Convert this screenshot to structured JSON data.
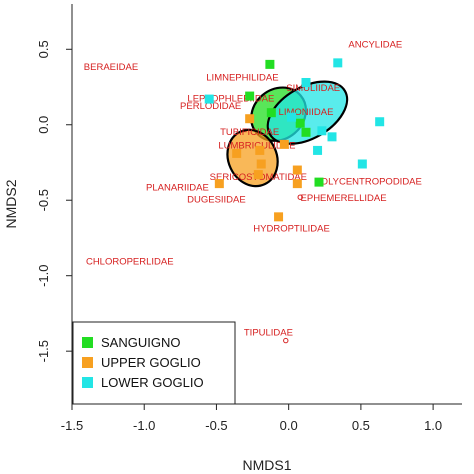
{
  "chart_data": {
    "type": "scatter",
    "xlabel": "NMDS1",
    "ylabel": "NMDS2",
    "xlim": [
      -1.5,
      1.2
    ],
    "ylim": [
      -1.85,
      0.8
    ],
    "xticks": [
      -1.5,
      -1.0,
      -0.5,
      0.0,
      0.5,
      1.0
    ],
    "xtick_labels": [
      "-1.5",
      "-1.0",
      "-0.5",
      "0.0",
      "0.5",
      "1.0"
    ],
    "yticks": [
      -1.5,
      -1.0,
      -0.5,
      0.0,
      0.5
    ],
    "ytick_labels": [
      "-1.5",
      "-1.0",
      "-0.5",
      "0.0",
      "0.5"
    ],
    "grid": false,
    "legend_position": "bottom-left",
    "series": [
      {
        "name": "SANGUIGNO",
        "color": "#22dd22",
        "points": [
          [
            -0.13,
            0.4
          ],
          [
            -0.27,
            0.19
          ],
          [
            -0.12,
            0.08
          ],
          [
            0.08,
            0.01
          ],
          [
            0.12,
            -0.05
          ],
          [
            0.21,
            -0.38
          ]
        ]
      },
      {
        "name": "UPPER GOGLIO",
        "color": "#f7a020",
        "points": [
          [
            -0.27,
            0.04
          ],
          [
            -0.2,
            -0.17
          ],
          [
            -0.03,
            -0.13
          ],
          [
            -0.21,
            -0.33
          ],
          [
            0.06,
            -0.3
          ],
          [
            -0.36,
            -0.19
          ],
          [
            -0.19,
            -0.26
          ],
          [
            -0.48,
            -0.39
          ],
          [
            0.06,
            -0.39
          ],
          [
            -0.07,
            -0.61
          ]
        ]
      },
      {
        "name": "LOWER GOGLIO",
        "color": "#22e5e5",
        "points": [
          [
            0.34,
            0.41
          ],
          [
            0.12,
            0.28
          ],
          [
            -0.55,
            0.17
          ],
          [
            0.63,
            0.02
          ],
          [
            0.02,
            0.05
          ],
          [
            0.23,
            -0.04
          ],
          [
            0.3,
            -0.08
          ],
          [
            0.2,
            -0.17
          ],
          [
            0.51,
            -0.26
          ]
        ]
      }
    ],
    "ellipses": [
      {
        "series": "SANGUIGNO",
        "center": [
          -0.07,
          0.07
        ],
        "rx": 0.2,
        "ry": 0.165,
        "angle_deg": -40
      },
      {
        "series": "UPPER GOGLIO",
        "center": [
          -0.25,
          -0.22
        ],
        "rx": 0.2,
        "ry": 0.16,
        "angle_deg": 65
      },
      {
        "series": "LOWER GOGLIO",
        "center": [
          0.13,
          0.08
        ],
        "rx": 0.3,
        "ry": 0.17,
        "angle_deg": -30
      }
    ],
    "taxa": [
      {
        "label": "ANCYLIDAE",
        "x": 0.6,
        "y": 0.53
      },
      {
        "label": "BERAEIDAE",
        "x": -1.23,
        "y": 0.38
      },
      {
        "label": "LIMNEPHILIDAE",
        "x": -0.32,
        "y": 0.31
      },
      {
        "label": "LEPTOPHLEBIIDAE",
        "x": -0.4,
        "y": 0.17
      },
      {
        "label": "PERLODIDAE",
        "x": -0.54,
        "y": 0.12
      },
      {
        "label": "SIMULIIDAE",
        "x": 0.17,
        "y": 0.24
      },
      {
        "label": "LIMONIIDAE",
        "x": 0.12,
        "y": 0.08
      },
      {
        "label": "TUBIFICIDAE",
        "x": -0.27,
        "y": -0.05
      },
      {
        "label": "LUMBRICULIDAE",
        "x": -0.22,
        "y": -0.14
      },
      {
        "label": "SERICOSTOMATIDAE",
        "x": -0.21,
        "y": -0.35
      },
      {
        "label": "PLANARIIDAE",
        "x": -0.77,
        "y": -0.42
      },
      {
        "label": "DUGESIIDAE",
        "x": -0.5,
        "y": -0.5
      },
      {
        "label": "POLYCENTROPODIDAE",
        "x": 0.55,
        "y": -0.38
      },
      {
        "label": "EPHEMERELLIDAE",
        "x": 0.38,
        "y": -0.49
      },
      {
        "label": "HYDROPTILIDAE",
        "x": 0.02,
        "y": -0.69
      },
      {
        "label": "CHLOROPERLIDAE",
        "x": -1.1,
        "y": -0.91
      },
      {
        "label": "TIPULIDAE",
        "x": -0.14,
        "y": -1.38
      }
    ],
    "origin_markers": [
      [
        0.08,
        -0.48
      ],
      [
        -0.02,
        -1.43
      ]
    ]
  }
}
